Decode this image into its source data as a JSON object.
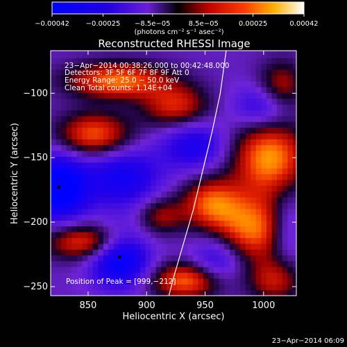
{
  "chart_data": {
    "type": "heatmap",
    "title": "Reconstructed RHESSI Image",
    "xlabel": "Heliocentric X (arcsec)",
    "ylabel": "Heliocentric Y (arcsec)",
    "xlim": [
      818,
      1028
    ],
    "ylim": [
      -257,
      -67
    ],
    "x_ticks": [
      {
        "value": 850,
        "label": "850"
      },
      {
        "value": 900,
        "label": "900"
      },
      {
        "value": 950,
        "label": "950"
      },
      {
        "value": 1000,
        "label": "1000"
      }
    ],
    "y_ticks": [
      {
        "value": -100,
        "label": "−100"
      },
      {
        "value": -150,
        "label": "−150"
      },
      {
        "value": -200,
        "label": "−200"
      },
      {
        "value": -250,
        "label": "−250"
      }
    ],
    "colorbar": {
      "range": [
        -0.00042,
        0.00042
      ],
      "tick_labels": [
        "−0.00042",
        "−0.00025",
        "−8.5e−05",
        "8.5e−05",
        "0.00025",
        "0.00042"
      ],
      "tick_values": [
        -0.00042,
        -0.00025,
        -8.5e-05,
        8.5e-05,
        0.00025,
        0.00042
      ],
      "units_label": "(photons cm⁻² s⁻¹ asec⁻²)"
    },
    "annotations": [
      "23−Apr−2014 00:38:26.000 to 00:42:48.000",
      "Detectors: 3F 5F 6F 7F 8F 9F Att 0",
      "Energy Range: 25.0 − 50.0 keV",
      "Clean    Total counts: 1.14E+04"
    ],
    "peak_label": "Position of Peak = [999,−212]",
    "peak": {
      "x": 999,
      "y": -212
    },
    "limb_curve": [
      {
        "x": 968,
        "y": -67
      },
      {
        "x": 963,
        "y": -100
      },
      {
        "x": 956,
        "y": -130
      },
      {
        "x": 948,
        "y": -160
      },
      {
        "x": 940,
        "y": -190
      },
      {
        "x": 932,
        "y": -215
      },
      {
        "x": 924,
        "y": -240
      },
      {
        "x": 919,
        "y": -257
      }
    ],
    "dark_points": [
      {
        "x": 825,
        "y": -173
      },
      {
        "x": 877,
        "y": -227
      }
    ],
    "blobs": [
      {
        "x": 875,
        "y": -90,
        "sx": 30,
        "sy": 10,
        "amp": 0.9
      },
      {
        "x": 925,
        "y": -110,
        "sx": 20,
        "sy": 12,
        "amp": 0.7
      },
      {
        "x": 855,
        "y": -132,
        "sx": 22,
        "sy": 12,
        "amp": 0.85
      },
      {
        "x": 955,
        "y": -185,
        "sx": 18,
        "sy": 14,
        "amp": 0.8
      },
      {
        "x": 1005,
        "y": -150,
        "sx": 22,
        "sy": 20,
        "amp": 1.0
      },
      {
        "x": 990,
        "y": -205,
        "sx": 22,
        "sy": 18,
        "amp": 0.9
      },
      {
        "x": 912,
        "y": -195,
        "sx": 14,
        "sy": 10,
        "amp": 0.5
      },
      {
        "x": 850,
        "y": -215,
        "sx": 25,
        "sy": 10,
        "amp": 0.85
      },
      {
        "x": 935,
        "y": -245,
        "sx": 22,
        "sy": 10,
        "amp": 0.9
      },
      {
        "x": 1010,
        "y": -245,
        "sx": 16,
        "sy": 12,
        "amp": 0.6
      },
      {
        "x": 1015,
        "y": -95,
        "sx": 14,
        "sy": 14,
        "amp": 0.6
      },
      {
        "x": 825,
        "y": -173,
        "sx": 18,
        "sy": 18,
        "amp": -1.1
      },
      {
        "x": 877,
        "y": -227,
        "sx": 18,
        "sy": 16,
        "amp": -1.0
      },
      {
        "x": 880,
        "y": -165,
        "sx": 22,
        "sy": 16,
        "amp": -0.7
      },
      {
        "x": 940,
        "y": -140,
        "sx": 20,
        "sy": 14,
        "amp": -0.6
      },
      {
        "x": 1000,
        "y": -110,
        "sx": 18,
        "sy": 12,
        "amp": -0.55
      },
      {
        "x": 960,
        "y": -230,
        "sx": 16,
        "sy": 14,
        "amp": -0.55
      },
      {
        "x": 1020,
        "y": -205,
        "sx": 10,
        "sy": 20,
        "amp": -0.4
      }
    ]
  },
  "footer": {
    "timestamp": "23−Apr−2014 06:09"
  }
}
